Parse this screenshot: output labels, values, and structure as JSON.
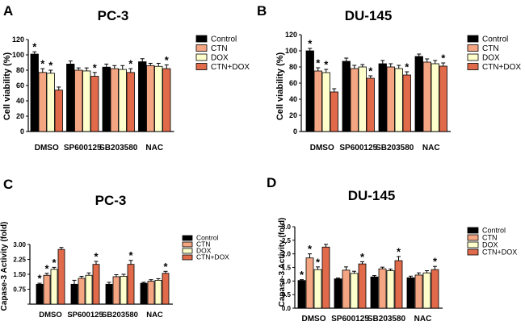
{
  "colors": {
    "Control": "#000000",
    "CTN": "#f4a582",
    "DOX": "#ffffcc",
    "CTN+DOX": "#e06a4a",
    "axis": "#000000"
  },
  "chart_data": [
    {
      "panel": "A",
      "type": "bar",
      "title": "PC-3",
      "ylabel": "Cell viability (%)",
      "xlabel": "",
      "ylim": [
        0,
        120
      ],
      "yticks": [
        "0",
        "20",
        "40",
        "60",
        "80",
        "100",
        "120"
      ],
      "categories": [
        "DMSO",
        "SP600125",
        "SB203580",
        "NAC"
      ],
      "legend": [
        "Control",
        "CTN",
        "DOX",
        "CTN+DOX"
      ],
      "series": [
        {
          "name": "Control",
          "values": [
            101,
            88,
            84,
            91
          ],
          "errors": [
            3,
            4,
            4,
            4
          ],
          "stars": [
            true,
            false,
            false,
            false
          ]
        },
        {
          "name": "CTN",
          "values": [
            77,
            80,
            82,
            86
          ],
          "errors": [
            5,
            3,
            4,
            3
          ],
          "stars": [
            true,
            false,
            false,
            false
          ]
        },
        {
          "name": "DOX",
          "values": [
            76,
            79,
            81,
            85
          ],
          "errors": [
            4,
            4,
            5,
            4
          ],
          "stars": [
            true,
            false,
            false,
            false
          ]
        },
        {
          "name": "CTN+DOX",
          "values": [
            54,
            72,
            77,
            82
          ],
          "errors": [
            4,
            5,
            5,
            5
          ],
          "stars": [
            false,
            true,
            true,
            true
          ]
        }
      ],
      "star": "*"
    },
    {
      "panel": "B",
      "type": "bar",
      "title": "DU-145",
      "ylabel": "Cell viability (%)",
      "xlabel": "",
      "ylim": [
        0,
        120
      ],
      "yticks": [
        "0",
        "20",
        "40",
        "60",
        "80",
        "100",
        "120"
      ],
      "categories": [
        "DMSO",
        "SP600125",
        "SB203580",
        "NAC"
      ],
      "legend": [
        "Control",
        "CTN",
        "DOX",
        "CTN+DOX"
      ],
      "series": [
        {
          "name": "Control",
          "values": [
            100,
            87,
            84,
            93
          ],
          "errors": [
            3,
            4,
            4,
            3
          ],
          "stars": [
            true,
            false,
            false,
            false
          ]
        },
        {
          "name": "CTN",
          "values": [
            75,
            78,
            80,
            86
          ],
          "errors": [
            4,
            4,
            4,
            4
          ],
          "stars": [
            true,
            false,
            false,
            false
          ]
        },
        {
          "name": "DOX",
          "values": [
            73,
            80,
            78,
            84
          ],
          "errors": [
            4,
            3,
            4,
            4
          ],
          "stars": [
            true,
            false,
            false,
            false
          ]
        },
        {
          "name": "CTN+DOX",
          "values": [
            49,
            66,
            70,
            81
          ],
          "errors": [
            4,
            3,
            4,
            4
          ],
          "stars": [
            false,
            true,
            true,
            true
          ]
        }
      ],
      "star": "*"
    },
    {
      "panel": "C",
      "type": "bar",
      "title": "PC-3",
      "ylabel": "Capase-3 Activity (fold)",
      "xlabel": "",
      "ylim": [
        0,
        3.0
      ],
      "yticks": [
        "",
        "0.75",
        "1.50",
        "2.25",
        "3.00"
      ],
      "categories": [
        "DMSO",
        "SP600125",
        "SB203580",
        "NAC"
      ],
      "legend": [
        "Control",
        "CTN",
        "DOX",
        "CTN+DOX"
      ],
      "series": [
        {
          "name": "Control",
          "values": [
            1.0,
            1.0,
            1.0,
            1.05
          ],
          "errors": [
            0.05,
            0.2,
            0.1,
            0.05
          ],
          "stars": [
            true,
            false,
            false,
            false
          ]
        },
        {
          "name": "CTN",
          "values": [
            1.45,
            1.3,
            1.38,
            1.15
          ],
          "errors": [
            0.1,
            0.1,
            0.1,
            0.08
          ],
          "stars": [
            true,
            false,
            false,
            false
          ]
        },
        {
          "name": "DOX",
          "values": [
            1.75,
            1.45,
            1.4,
            1.2
          ],
          "errors": [
            0.1,
            0.12,
            0.1,
            0.08
          ],
          "stars": [
            true,
            false,
            false,
            false
          ]
        },
        {
          "name": "CTN+DOX",
          "values": [
            2.75,
            2.0,
            2.0,
            1.55
          ],
          "errors": [
            0.1,
            0.15,
            0.2,
            0.1
          ],
          "stars": [
            false,
            true,
            true,
            true
          ]
        }
      ],
      "star": "*"
    },
    {
      "panel": "D",
      "type": "bar",
      "title": "DU-145",
      "ylabel": "Capase-3 Activity (fold)",
      "xlabel": "",
      "ylim": [
        0,
        3.0
      ],
      "yticks": [
        "0.0",
        "0.5",
        "1.0",
        "1.5",
        "2.0",
        "2.5",
        "3.0"
      ],
      "categories": [
        "DMSO",
        "SP600125",
        "SB203580",
        "NAC"
      ],
      "legend": [
        "Control",
        "CTN",
        "DOX",
        "CTN+DOX"
      ],
      "series": [
        {
          "name": "Control",
          "values": [
            1.02,
            1.08,
            1.15,
            1.12
          ],
          "errors": [
            0.03,
            0.03,
            0.05,
            0.06
          ],
          "stars": [
            true,
            false,
            false,
            false
          ]
        },
        {
          "name": "CTN",
          "values": [
            1.85,
            1.4,
            1.45,
            1.22
          ],
          "errors": [
            0.15,
            0.12,
            0.06,
            0.08
          ],
          "stars": [
            true,
            false,
            false,
            false
          ]
        },
        {
          "name": "DOX",
          "values": [
            1.42,
            1.28,
            1.38,
            1.3
          ],
          "errors": [
            0.1,
            0.08,
            0.06,
            0.08
          ],
          "stars": [
            true,
            false,
            false,
            false
          ]
        },
        {
          "name": "CTN+DOX",
          "values": [
            2.25,
            1.63,
            1.75,
            1.42
          ],
          "errors": [
            0.1,
            0.08,
            0.15,
            0.12
          ],
          "stars": [
            false,
            true,
            true,
            true
          ]
        }
      ],
      "star": "*"
    }
  ]
}
